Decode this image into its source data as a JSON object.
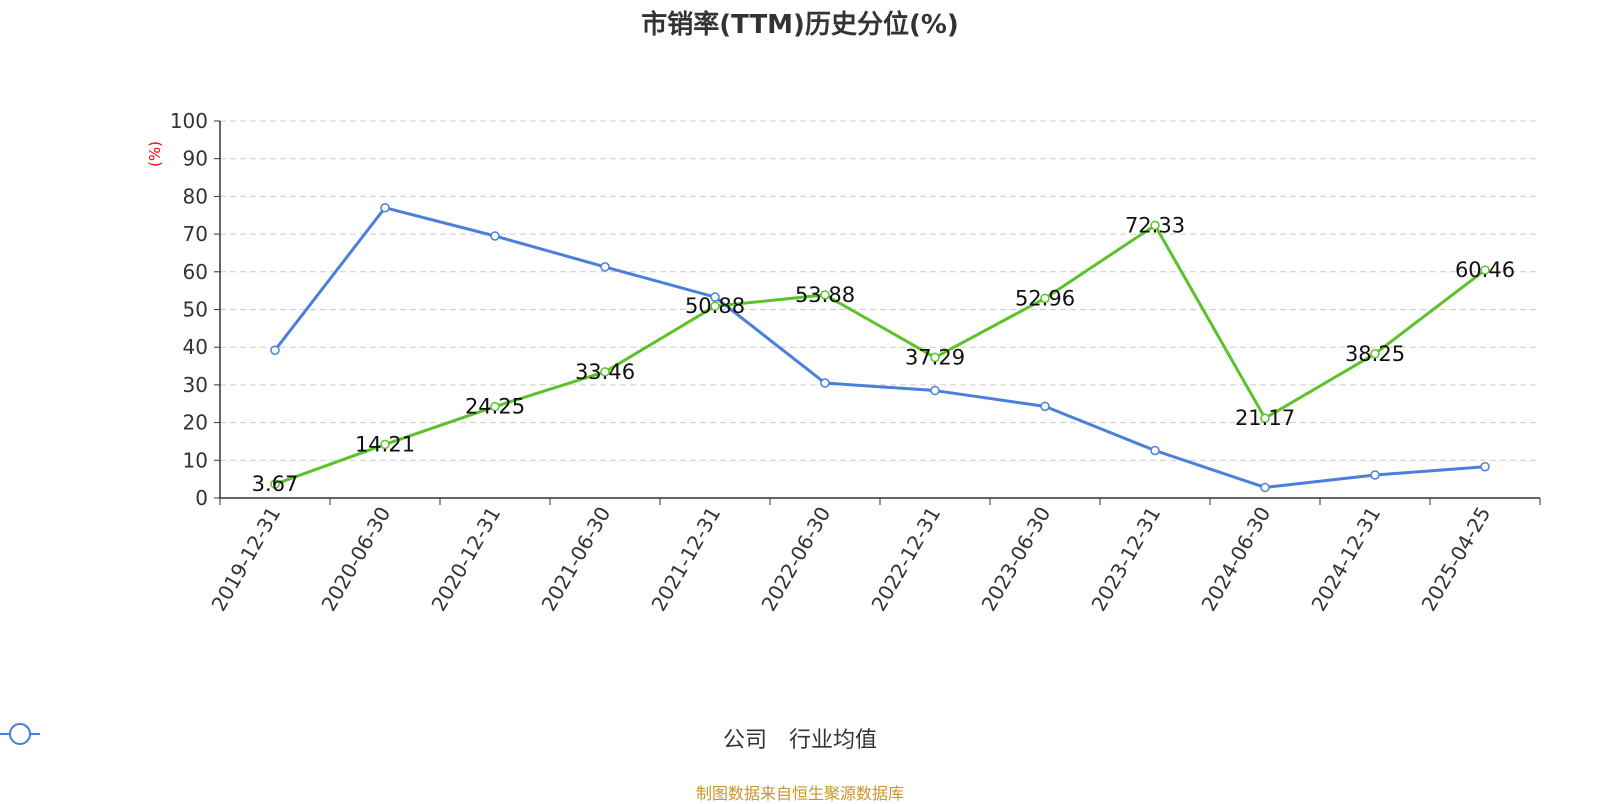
{
  "chart_data": {
    "type": "line",
    "title": "市销率(TTM)历史分位(%)",
    "ylabel": "(%)",
    "ylim": [
      0,
      100
    ],
    "yticks": [
      0,
      10,
      20,
      30,
      40,
      50,
      60,
      70,
      80,
      90,
      100
    ],
    "categories": [
      "2019-12-31",
      "2020-06-30",
      "2020-12-31",
      "2021-06-30",
      "2021-12-31",
      "2022-06-30",
      "2022-12-31",
      "2023-06-30",
      "2023-12-31",
      "2024-06-30",
      "2024-12-31",
      "2025-04-25"
    ],
    "grid": true,
    "legend_position": "bottom",
    "series": [
      {
        "name": "公司",
        "color": "#5cc22a",
        "values": [
          3.67,
          14.21,
          24.25,
          33.46,
          50.88,
          53.88,
          37.29,
          52.96,
          72.33,
          21.17,
          38.25,
          60.46
        ],
        "labels": [
          "3.67",
          "14.21",
          "24.25",
          "33.46",
          "50.88",
          "53.88",
          "37.29",
          "52.96",
          "72.33",
          "21.17",
          "38.25",
          "60.46"
        ]
      },
      {
        "name": "行业均值",
        "color": "#4a7fdc",
        "values": [
          39.2,
          77.0,
          69.5,
          61.3,
          53.3,
          30.5,
          28.5,
          24.3,
          12.6,
          2.8,
          6.1,
          8.3
        ]
      }
    ]
  },
  "source": "制图数据来自恒生聚源数据库"
}
